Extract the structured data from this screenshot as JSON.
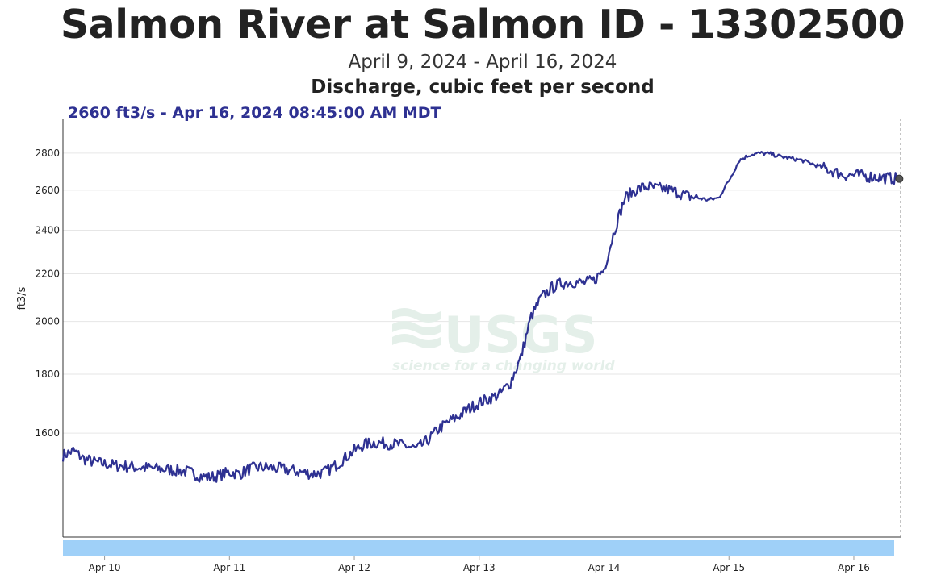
{
  "header": {
    "title": "Salmon River at Salmon ID - 13302500",
    "date_range": "April 9, 2024 - April 16, 2024",
    "parameter": "Discharge, cubic feet per second"
  },
  "readout": "2660 ft3/s - Apr 16, 2024 08:45:00 AM MDT",
  "watermark": {
    "logo": "USGS",
    "tagline": "science for a changing world"
  },
  "colors": {
    "line": "#2e3192",
    "navigator": "#9fd0f8",
    "grid": "#e6e6e6",
    "marker": "#555555"
  },
  "chart_data": {
    "type": "line",
    "title": "Salmon River at Salmon ID - 13302500",
    "subtitle": "April 9, 2024 - April 16, 2024",
    "ylabel": "ft3/s",
    "yscale": "log",
    "ylim": [
      1300,
      3000
    ],
    "xlim": [
      "2024-04-09T16:00",
      "2024-04-16T09:00"
    ],
    "yticks": [
      1600,
      1800,
      2000,
      2200,
      2400,
      2600,
      2800
    ],
    "xticks": [
      {
        "label": "Apr 10",
        "x": "2024-04-10T00:00"
      },
      {
        "label": "Apr 11",
        "x": "2024-04-11T00:00"
      },
      {
        "label": "Apr 12",
        "x": "2024-04-12T00:00"
      },
      {
        "label": "Apr 13",
        "x": "2024-04-13T00:00"
      },
      {
        "label": "Apr 14",
        "x": "2024-04-14T00:00"
      },
      {
        "label": "Apr 15",
        "x": "2024-04-15T00:00"
      },
      {
        "label": "Apr 16",
        "x": "2024-04-16T00:00"
      }
    ],
    "series": [
      {
        "x": [
          "2024-04-09T16:00",
          "2024-04-09T18:00",
          "2024-04-09T20:00",
          "2024-04-09T22:00",
          "2024-04-10T00:00",
          "2024-04-10T02:00",
          "2024-04-10T04:00",
          "2024-04-10T06:00",
          "2024-04-10T08:00",
          "2024-04-10T10:00",
          "2024-04-10T12:00",
          "2024-04-10T14:00",
          "2024-04-10T16:00",
          "2024-04-10T18:00",
          "2024-04-10T20:00",
          "2024-04-10T22:00",
          "2024-04-11T00:00",
          "2024-04-11T02:00",
          "2024-04-11T04:00",
          "2024-04-11T06:00",
          "2024-04-11T08:00",
          "2024-04-11T10:00",
          "2024-04-11T12:00",
          "2024-04-11T14:00",
          "2024-04-11T16:00",
          "2024-04-11T18:00",
          "2024-04-11T20:00",
          "2024-04-11T22:00",
          "2024-04-12T00:00",
          "2024-04-12T02:00",
          "2024-04-12T04:00",
          "2024-04-12T06:00",
          "2024-04-12T08:00",
          "2024-04-12T10:00",
          "2024-04-12T12:00",
          "2024-04-12T14:00",
          "2024-04-12T16:00",
          "2024-04-12T18:00",
          "2024-04-12T20:00",
          "2024-04-12T22:00",
          "2024-04-13T00:00",
          "2024-04-13T02:00",
          "2024-04-13T04:00",
          "2024-04-13T06:00",
          "2024-04-13T08:00",
          "2024-04-13T10:00",
          "2024-04-13T12:00",
          "2024-04-13T14:00",
          "2024-04-13T16:00",
          "2024-04-13T18:00",
          "2024-04-13T20:00",
          "2024-04-13T22:00",
          "2024-04-14T00:00",
          "2024-04-14T02:00",
          "2024-04-14T04:00",
          "2024-04-14T06:00",
          "2024-04-14T08:00",
          "2024-04-14T10:00",
          "2024-04-14T12:00",
          "2024-04-14T14:00",
          "2024-04-14T16:00",
          "2024-04-14T18:00",
          "2024-04-14T20:00",
          "2024-04-14T22:00",
          "2024-04-15T00:00",
          "2024-04-15T02:00",
          "2024-04-15T04:00",
          "2024-04-15T06:00",
          "2024-04-15T08:00",
          "2024-04-15T10:00",
          "2024-04-15T12:00",
          "2024-04-15T14:00",
          "2024-04-15T16:00",
          "2024-04-15T18:00",
          "2024-04-15T20:00",
          "2024-04-15T22:00",
          "2024-04-16T00:00",
          "2024-04-16T02:00",
          "2024-04-16T04:00",
          "2024-04-16T06:00",
          "2024-04-16T08:45"
        ],
        "values": [
          1530,
          1545,
          1520,
          1510,
          1505,
          1500,
          1498,
          1495,
          1493,
          1490,
          1488,
          1485,
          1482,
          1470,
          1465,
          1470,
          1480,
          1475,
          1490,
          1495,
          1493,
          1490,
          1485,
          1480,
          1475,
          1478,
          1495,
          1520,
          1545,
          1565,
          1570,
          1568,
          1565,
          1560,
          1550,
          1575,
          1610,
          1635,
          1655,
          1680,
          1700,
          1715,
          1730,
          1770,
          1860,
          2020,
          2100,
          2140,
          2160,
          2165,
          2160,
          2170,
          2220,
          2400,
          2560,
          2600,
          2620,
          2610,
          2605,
          2590,
          2570,
          2560,
          2550,
          2560,
          2650,
          2760,
          2790,
          2800,
          2795,
          2780,
          2770,
          2760,
          2740,
          2720,
          2700,
          2680,
          2680,
          2675,
          2670,
          2665,
          2660
        ]
      }
    ],
    "last_point": {
      "x": "2024-04-16T08:45",
      "y": 2660
    }
  }
}
